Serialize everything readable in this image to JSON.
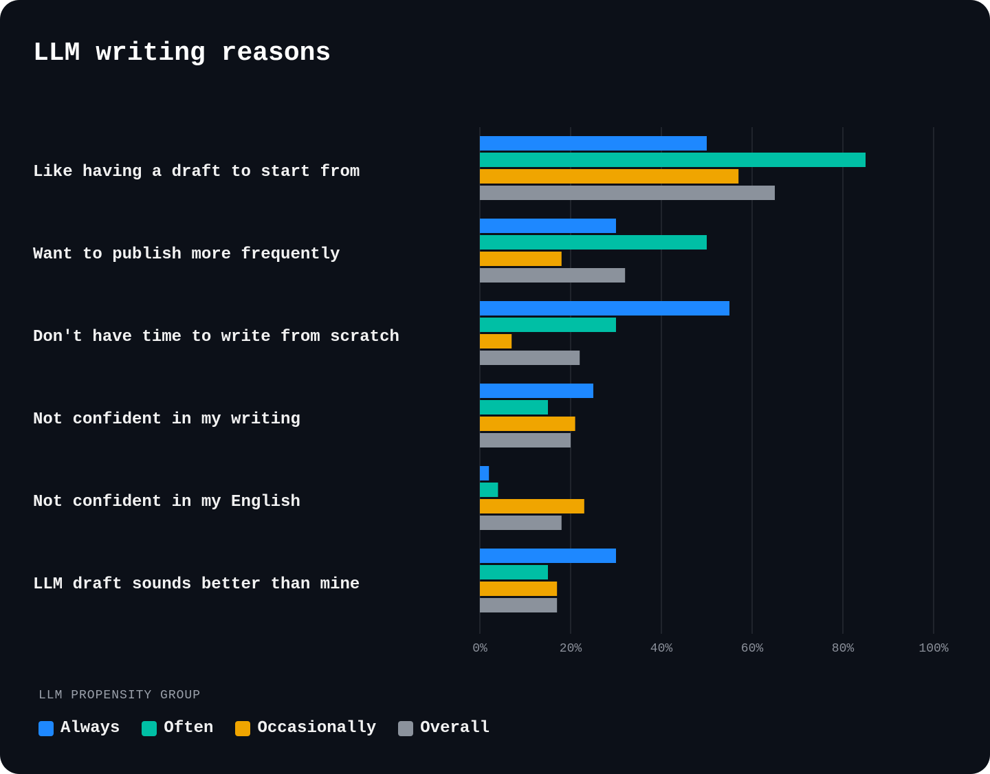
{
  "chart_data": {
    "type": "bar",
    "orientation": "horizontal",
    "title": "LLM writing reasons",
    "categories": [
      "Like having a draft to start from",
      "Want to publish more frequently",
      "Don't have time to write from scratch",
      "Not confident in my writing",
      "Not confident in my English",
      "LLM draft sounds better than mine"
    ],
    "series": [
      {
        "name": "Always",
        "color": "#1e88ff",
        "values": [
          50,
          30,
          55,
          25,
          2,
          30
        ]
      },
      {
        "name": "Often",
        "color": "#00bfa5",
        "values": [
          85,
          50,
          30,
          15,
          4,
          15
        ]
      },
      {
        "name": "Occasionally",
        "color": "#f0a500",
        "values": [
          57,
          18,
          7,
          21,
          23,
          17
        ]
      },
      {
        "name": "Overall",
        "color": "#8b929c",
        "values": [
          65,
          32,
          22,
          20,
          18,
          17
        ]
      }
    ],
    "xlim": [
      0,
      100
    ],
    "xticks": [
      "0%",
      "20%",
      "40%",
      "60%",
      "80%",
      "100%"
    ],
    "grid": "vertical",
    "legend_title": "LLM PROPENSITY GROUP",
    "legend_position": "bottom-left"
  }
}
